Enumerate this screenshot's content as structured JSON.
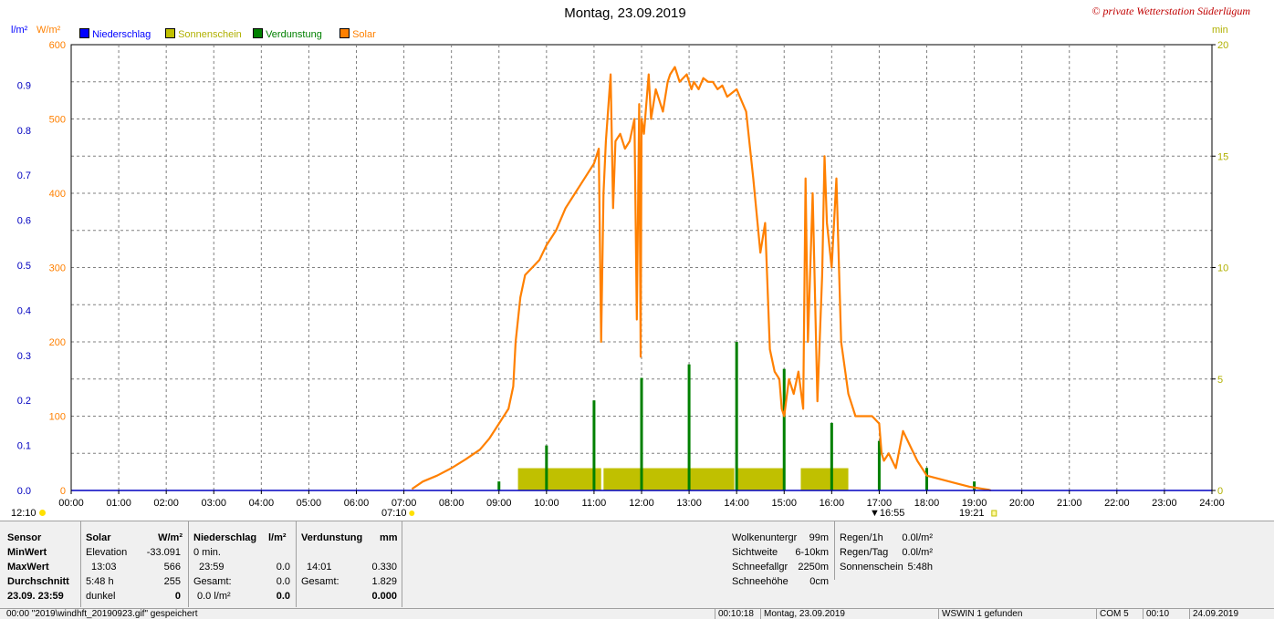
{
  "header": {
    "title": "Montag, 23.09.2019",
    "station": "© private Wetterstation Süderlügum"
  },
  "colors": {
    "niederschlag": "#0000ff",
    "sonnenschein": "#c0c000",
    "verdunstung": "#008000",
    "solar": "#ff8000",
    "grid": "#808080"
  },
  "legend": [
    {
      "label": "Niederschlag",
      "color": "#0000ff"
    },
    {
      "label": "Sonnenschein",
      "color": "#c0c000"
    },
    {
      "label": "Verdunstung",
      "color": "#008000"
    },
    {
      "label": "Solar",
      "color": "#ff8000"
    }
  ],
  "axes": {
    "left1_unit": "l/m²",
    "left2_unit": "W/m²",
    "right_unit": "min",
    "left1_ticks": [
      "0.0",
      "0.1",
      "0.2",
      "0.3",
      "0.4",
      "0.5",
      "0.6",
      "0.7",
      "0.8",
      "0.9"
    ],
    "left2_ticks": [
      "0",
      "100",
      "200",
      "300",
      "400",
      "500",
      "600"
    ],
    "right_ticks": [
      "0",
      "5",
      "10",
      "15",
      "20"
    ],
    "x_ticks": [
      "00:00",
      "01:00",
      "02:00",
      "03:00",
      "04:00",
      "05:00",
      "06:00",
      "07:00",
      "08:00",
      "09:00",
      "10:00",
      "11:00",
      "12:00",
      "13:00",
      "14:00",
      "15:00",
      "16:00",
      "17:00",
      "18:00",
      "19:00",
      "20:00",
      "21:00",
      "22:00",
      "23:00",
      "24:00"
    ]
  },
  "markers": {
    "noon": "12:10",
    "sunrise": "07:10",
    "sunset": "19:21",
    "time_mark": "16:55"
  },
  "chart_data": {
    "type": "line",
    "x_unit": "hours",
    "ylim_solar": [
      0,
      600
    ],
    "ylim_minutes": [
      0,
      20
    ],
    "ylim_rain": [
      0,
      0.99
    ],
    "grid": true,
    "legend_position": "top-left",
    "series": [
      {
        "name": "Solar",
        "unit": "W/m²",
        "x": [
          7.17,
          7.4,
          7.7,
          8.0,
          8.3,
          8.6,
          8.8,
          9.0,
          9.2,
          9.3,
          9.35,
          9.45,
          9.55,
          9.7,
          9.85,
          10.0,
          10.2,
          10.4,
          10.6,
          10.8,
          11.0,
          11.1,
          11.15,
          11.2,
          11.25,
          11.35,
          11.4,
          11.45,
          11.55,
          11.65,
          11.75,
          11.85,
          11.9,
          11.95,
          11.98,
          12.0,
          12.05,
          12.1,
          12.15,
          12.2,
          12.3,
          12.45,
          12.55,
          12.6,
          12.7,
          12.8,
          12.95,
          13.05,
          13.1,
          13.2,
          13.3,
          13.4,
          13.5,
          13.6,
          13.7,
          13.8,
          14.0,
          14.2,
          14.35,
          14.5,
          14.6,
          14.7,
          14.8,
          14.9,
          14.95,
          15.0,
          15.1,
          15.2,
          15.3,
          15.4,
          15.45,
          15.5,
          15.6,
          15.7,
          15.8,
          15.85,
          15.9,
          16.0,
          16.1,
          16.2,
          16.35,
          16.5,
          16.7,
          16.85,
          17.0,
          17.05,
          17.1,
          17.2,
          17.35,
          17.5,
          17.65,
          17.8,
          18.0,
          18.3,
          18.6,
          18.9,
          19.1,
          19.3,
          19.35
        ],
        "y": [
          2,
          12,
          20,
          30,
          42,
          55,
          70,
          90,
          110,
          140,
          200,
          260,
          290,
          300,
          310,
          330,
          350,
          380,
          400,
          420,
          440,
          460,
          200,
          400,
          470,
          560,
          380,
          470,
          480,
          460,
          470,
          500,
          230,
          520,
          180,
          500,
          480,
          520,
          560,
          500,
          540,
          510,
          550,
          560,
          570,
          550,
          560,
          540,
          550,
          540,
          555,
          550,
          550,
          540,
          545,
          530,
          540,
          510,
          420,
          320,
          360,
          190,
          160,
          150,
          110,
          100,
          150,
          130,
          160,
          110,
          420,
          200,
          400,
          120,
          290,
          450,
          360,
          300,
          420,
          200,
          130,
          100,
          100,
          100,
          90,
          50,
          40,
          50,
          30,
          80,
          60,
          40,
          20,
          15,
          10,
          5,
          3,
          1,
          0
        ]
      },
      {
        "name": "Sonnenschein",
        "unit": "min",
        "blocks": [
          [
            9.4,
            11.15,
            1
          ],
          [
            11.2,
            13.95,
            1
          ],
          [
            14.0,
            15.0,
            1
          ],
          [
            15.35,
            16.35,
            1
          ]
        ]
      },
      {
        "name": "Verdunstung",
        "unit": "l/m²",
        "x": [
          9.0,
          10.0,
          11.0,
          12.0,
          13.0,
          14.0,
          15.0,
          16.0,
          17.0,
          18.0,
          19.0
        ],
        "y": [
          0.02,
          0.1,
          0.2,
          0.25,
          0.28,
          0.33,
          0.27,
          0.15,
          0.11,
          0.05,
          0.02
        ]
      },
      {
        "name": "Niederschlag",
        "unit": "l/m²",
        "x": [],
        "y": []
      }
    ]
  },
  "stats": {
    "col_sensor": {
      "header": "Sensor",
      "rows": [
        "MinWert",
        "MaxWert",
        "Durchschnitt",
        "23.09.  23:59"
      ]
    },
    "col_solar": {
      "header": "Solar",
      "unit": "W/m²",
      "rows": [
        [
          "Elevation",
          "-33.091"
        ],
        [
          "13:03",
          "566"
        ],
        [
          "5:48 h",
          "255"
        ],
        [
          "dunkel",
          "0"
        ]
      ]
    },
    "col_niederschlag": {
      "header": "Niederschlag",
      "unit": "l/m²",
      "rows": [
        [
          "0 min.",
          ""
        ],
        [
          "23:59",
          "0.0"
        ],
        [
          "Gesamt:",
          "0.0"
        ],
        [
          "0.0 l/m²",
          "0.0"
        ]
      ]
    },
    "col_verdunstung": {
      "header": "Verdunstung",
      "unit": "mm",
      "rows": [
        [
          "",
          ""
        ],
        [
          "14:01",
          "0.330"
        ],
        [
          "Gesamt:",
          "1.829"
        ],
        [
          "",
          "0.000"
        ]
      ]
    },
    "col_weather": {
      "rows": [
        [
          "Wolkenuntergr",
          "99m"
        ],
        [
          "Sichtweite",
          "6-10km"
        ],
        [
          "Schneefallgr",
          "2250m"
        ],
        [
          "Schneehöhe",
          "0cm"
        ]
      ]
    },
    "col_rain": {
      "rows": [
        [
          "Regen/1h",
          "0.0l/m²"
        ],
        [
          "Regen/Tag",
          "0.0l/m²"
        ],
        [
          "Sonnenschein",
          "5:48h"
        ]
      ]
    }
  },
  "statusbar": [
    {
      "text": "00:00  \"2019\\windhft_20190923.gif\"  gespeichert"
    },
    {
      "text": "00:10:18"
    },
    {
      "text": "Montag, 23.09.2019"
    },
    {
      "text": "WSWIN 1 gefunden"
    },
    {
      "text": "COM 5"
    },
    {
      "text": "00:10"
    },
    {
      "text": "24.09.2019"
    }
  ]
}
